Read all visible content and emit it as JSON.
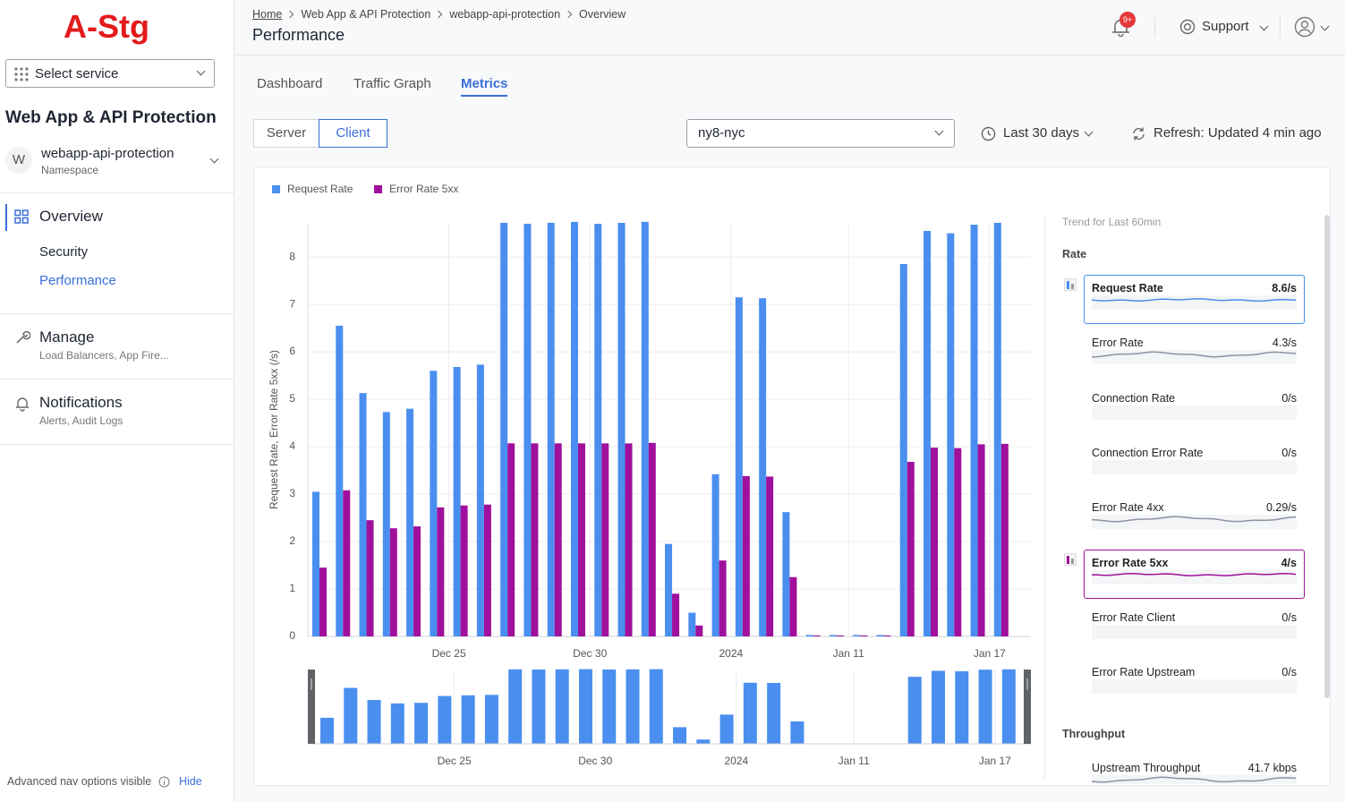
{
  "sidebar": {
    "logo": "A-Stg",
    "service_select": "Select service",
    "section_title": "Web App & API Protection",
    "namespace": {
      "avatar": "W",
      "name": "webapp-api-protection",
      "label": "Namespace"
    },
    "nav": [
      {
        "label": "Overview",
        "children": [
          "Security",
          "Performance"
        ]
      },
      {
        "label": "Manage",
        "subtitle": "Load Balancers, App Fire..."
      },
      {
        "label": "Notifications",
        "subtitle": "Alerts, Audit Logs"
      }
    ],
    "footer": {
      "text": "Advanced nav options visible",
      "link": "Hide"
    }
  },
  "header": {
    "breadcrumbs": [
      "Home",
      "Web App & API Protection",
      "webapp-api-protection",
      "Overview"
    ],
    "title": "Performance",
    "badge": "9+",
    "support": "Support"
  },
  "tabs": [
    "Dashboard",
    "Traffic Graph",
    "Metrics"
  ],
  "toggle": [
    "Server",
    "Client"
  ],
  "site_select": "ny8-nyc",
  "time_range": "Last 30 days",
  "refresh": "Refresh: Updated 4 min ago",
  "chart_data": {
    "type": "bar",
    "y_label": "Request Rate, Error Rate 5xx (/s)",
    "categories": [
      null,
      null,
      null,
      null,
      null,
      null,
      "Dec 25",
      null,
      null,
      null,
      null,
      null,
      "Dec 30",
      null,
      null,
      null,
      null,
      null,
      "2024",
      null,
      null,
      null,
      null,
      "Jan 11",
      null,
      null,
      null,
      null,
      null,
      "Jan 17"
    ],
    "series": [
      {
        "name": "Request Rate",
        "color": "#4a8ff0",
        "values": [
          3.05,
          6.55,
          5.13,
          4.73,
          4.8,
          5.6,
          5.68,
          5.73,
          8.72,
          8.7,
          8.72,
          8.74,
          8.7,
          8.72,
          8.74,
          1.95,
          0.5,
          3.42,
          7.15,
          7.13,
          2.62,
          0.03,
          0.03,
          0.03,
          0.03,
          7.85,
          8.55,
          8.5,
          8.68,
          8.72
        ]
      },
      {
        "name": "Error Rate 5xx",
        "color": "#a0109c",
        "values": [
          1.45,
          3.08,
          2.45,
          2.28,
          2.32,
          2.72,
          2.76,
          2.78,
          4.07,
          4.07,
          4.07,
          4.07,
          4.07,
          4.07,
          4.08,
          0.9,
          0.23,
          1.6,
          3.38,
          3.37,
          1.25,
          0.02,
          0.02,
          0.02,
          0.02,
          3.68,
          3.98,
          3.97,
          4.05,
          4.06
        ]
      }
    ],
    "ylim": [
      0,
      8.7
    ],
    "yticks": [
      0,
      1,
      2,
      3,
      4,
      5,
      6,
      7,
      8
    ],
    "grid": true,
    "legend": "top-left"
  },
  "trend_panel": {
    "title": "Trend for Last 60min",
    "groups": [
      {
        "name": "Rate",
        "metrics": [
          {
            "name": "Request Rate",
            "value": "8.6/s"
          },
          {
            "name": "Error Rate",
            "value": "4.3/s"
          },
          {
            "name": "Connection Rate",
            "value": "0/s"
          },
          {
            "name": "Connection Error Rate",
            "value": "0/s"
          },
          {
            "name": "Error Rate 4xx",
            "value": "0.29/s"
          },
          {
            "name": "Error Rate 5xx",
            "value": "4/s"
          },
          {
            "name": "Error Rate Client",
            "value": "0/s"
          },
          {
            "name": "Error Rate Upstream",
            "value": "0/s"
          }
        ]
      },
      {
        "name": "Throughput",
        "metrics": [
          {
            "name": "Upstream Throughput",
            "value": "41.7 kbps"
          }
        ]
      }
    ]
  }
}
